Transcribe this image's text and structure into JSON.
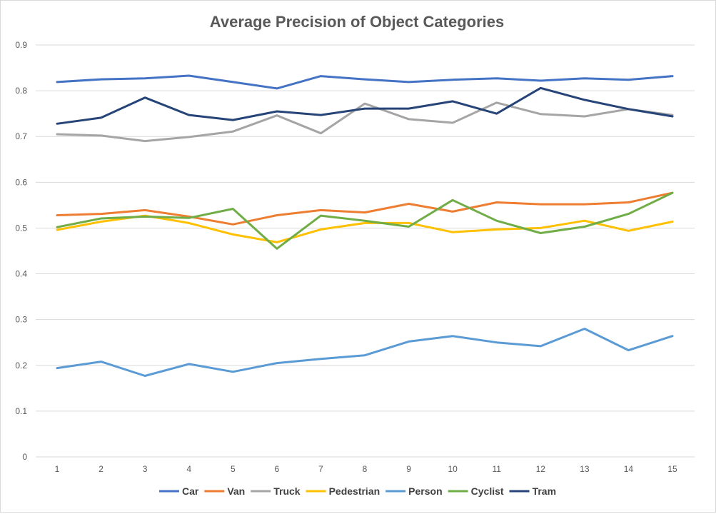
{
  "chart_data": {
    "type": "line",
    "title": "Average Precision of Object Categories",
    "xlabel": "",
    "ylabel": "",
    "x": [
      1,
      2,
      3,
      4,
      5,
      6,
      7,
      8,
      9,
      10,
      11,
      12,
      13,
      14,
      15
    ],
    "x_tick_labels": [
      "1",
      "2",
      "3",
      "4",
      "5",
      "6",
      "7",
      "8",
      "9",
      "10",
      "11",
      "12",
      "13",
      "14",
      "15"
    ],
    "ylim": [
      0,
      0.9
    ],
    "y_ticks": [
      0,
      0.1,
      0.2,
      0.3,
      0.4,
      0.5,
      0.6,
      0.7,
      0.8,
      0.9
    ],
    "y_tick_labels": [
      "0",
      "0.1",
      "0.2",
      "0.3",
      "0.4",
      "0.5",
      "0.6",
      "0.7",
      "0.8",
      "0.9"
    ],
    "grid": true,
    "legend_position": "bottom",
    "series": [
      {
        "name": "Car",
        "color": "#4472c4",
        "values": [
          0.819,
          0.825,
          0.827,
          0.833,
          0.819,
          0.805,
          0.832,
          0.825,
          0.819,
          0.824,
          0.827,
          0.822,
          0.827,
          0.824,
          0.832
        ]
      },
      {
        "name": "Van",
        "color": "#ed7d31",
        "values": [
          0.528,
          0.531,
          0.539,
          0.525,
          0.508,
          0.528,
          0.539,
          0.534,
          0.553,
          0.536,
          0.556,
          0.552,
          0.552,
          0.556,
          0.577
        ]
      },
      {
        "name": "Truck",
        "color": "#a5a5a5",
        "values": [
          0.705,
          0.702,
          0.69,
          0.699,
          0.711,
          0.746,
          0.707,
          0.772,
          0.738,
          0.73,
          0.774,
          0.749,
          0.744,
          0.76,
          0.747
        ]
      },
      {
        "name": "Pedestrian",
        "color": "#ffc000",
        "values": [
          0.496,
          0.514,
          0.527,
          0.511,
          0.486,
          0.469,
          0.497,
          0.511,
          0.511,
          0.491,
          0.497,
          0.5,
          0.516,
          0.494,
          0.514
        ]
      },
      {
        "name": "Person",
        "color": "#5b9bd5",
        "values": [
          0.194,
          0.208,
          0.177,
          0.203,
          0.186,
          0.205,
          0.214,
          0.222,
          0.252,
          0.264,
          0.25,
          0.242,
          0.28,
          0.233,
          0.264
        ]
      },
      {
        "name": "Cyclist",
        "color": "#70ad47",
        "values": [
          0.502,
          0.521,
          0.525,
          0.522,
          0.542,
          0.455,
          0.527,
          0.516,
          0.503,
          0.561,
          0.516,
          0.489,
          0.503,
          0.531,
          0.577
        ]
      },
      {
        "name": "Tram",
        "color": "#264478",
        "values": [
          0.728,
          0.741,
          0.785,
          0.747,
          0.736,
          0.755,
          0.747,
          0.761,
          0.761,
          0.777,
          0.75,
          0.806,
          0.78,
          0.76,
          0.744
        ]
      }
    ]
  }
}
